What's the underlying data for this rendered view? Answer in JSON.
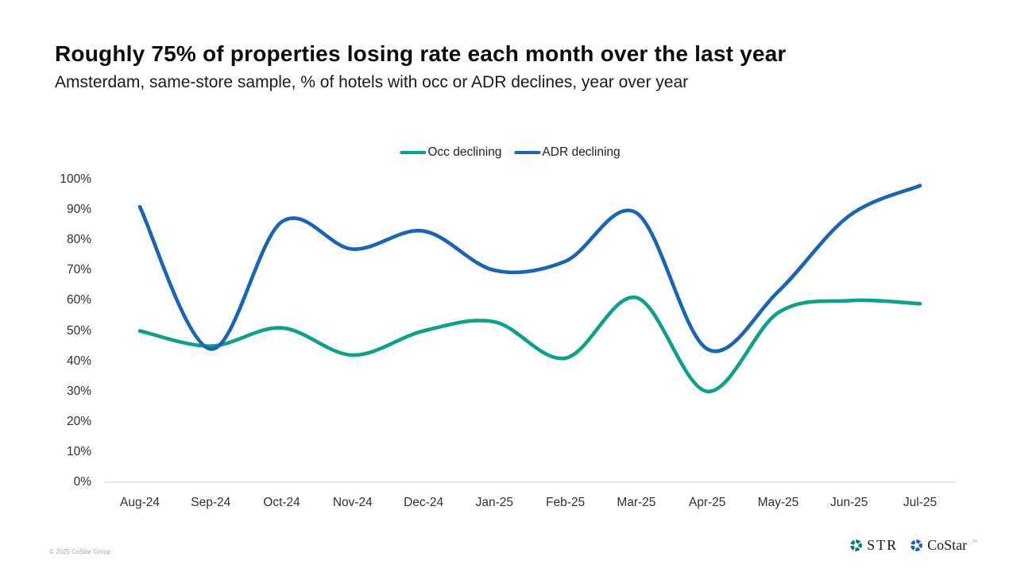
{
  "header": {
    "title": "Roughly 75% of properties losing rate each month over the last year",
    "subtitle": "Amsterdam, same-store sample, % of hotels with occ or ADR declines, year over year"
  },
  "chart_data": {
    "type": "line",
    "title": "Roughly 75% of properties losing rate each month over the last year",
    "subtitle": "Amsterdam, same-store sample, % of hotels with occ or ADR declines, year over year",
    "categories": [
      "Aug-24",
      "Sep-24",
      "Oct-24",
      "Nov-24",
      "Dec-24",
      "Jan-25",
      "Feb-25",
      "Mar-25",
      "Apr-25",
      "May-25",
      "Jun-25",
      "Jul-25"
    ],
    "series": [
      {
        "name": "Occ declining",
        "color": "#0ca28a",
        "values": [
          50,
          45,
          51,
          42,
          50,
          53,
          41,
          61,
          30,
          56,
          60,
          59
        ]
      },
      {
        "name": "ADR declining",
        "color": "#1b63b5",
        "values": [
          91,
          44,
          86,
          77,
          83,
          70,
          73,
          89,
          44,
          63,
          88,
          98
        ]
      }
    ],
    "ylim": [
      0,
      100
    ],
    "y_ticks": [
      "0%",
      "10%",
      "20%",
      "30%",
      "40%",
      "50%",
      "60%",
      "70%",
      "80%",
      "90%",
      "100%"
    ],
    "y_tick_step": 10,
    "legend_position": "top-center",
    "grid": false,
    "axis_line_color": "#d9d9d9",
    "line_style": "smooth"
  },
  "footer": {
    "copyright": "© 2025 CoStar Group",
    "str_label": "STR",
    "costar_label": "CoStar",
    "costar_tm": "™",
    "str_mark_color": "#00806c",
    "costar_mark_color": "#1d5fae",
    "str_mark_icon": "pinwheel-ring-icon",
    "costar_mark_icon": "pinwheel-ring-icon"
  }
}
